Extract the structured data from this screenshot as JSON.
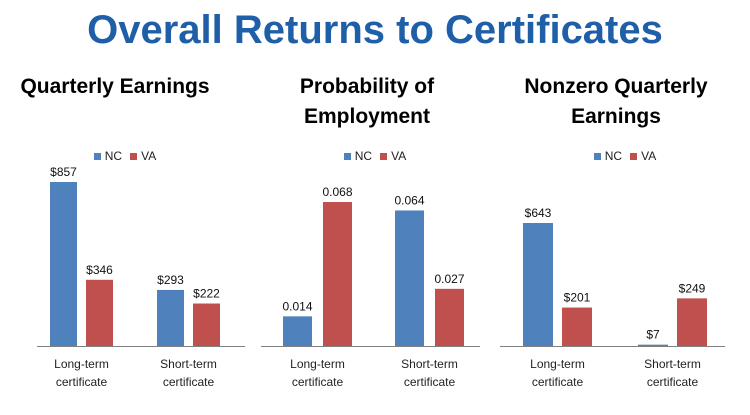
{
  "title": "Overall Returns to Certificates",
  "colors": {
    "NC": "#4f81bd",
    "VA": "#c0504d",
    "title": "#1f5fa8",
    "axis": "#808080"
  },
  "chart_data": [
    {
      "type": "bar",
      "title": "Quarterly Earnings",
      "categories": [
        "Long-term certificate",
        "Short-term certificate"
      ],
      "series": [
        {
          "name": "NC",
          "values": [
            857,
            293
          ],
          "labels": [
            "$857",
            "$293"
          ]
        },
        {
          "name": "VA",
          "values": [
            346,
            222
          ],
          "labels": [
            "$346",
            "$222"
          ]
        }
      ]
    },
    {
      "type": "bar",
      "title": "Probability of Employment",
      "categories": [
        "Long-term certificate",
        "Short-term certificate"
      ],
      "series": [
        {
          "name": "NC",
          "values": [
            0.014,
            0.064
          ],
          "labels": [
            "0.014",
            "0.064"
          ]
        },
        {
          "name": "VA",
          "values": [
            0.068,
            0.027
          ],
          "labels": [
            "0.068",
            "0.027"
          ]
        }
      ]
    },
    {
      "type": "bar",
      "title": "Nonzero Quarterly Earnings",
      "categories": [
        "Long-term certificate",
        "Short-term certificate"
      ],
      "series": [
        {
          "name": "NC",
          "values": [
            643,
            7
          ],
          "labels": [
            "$643",
            "$7"
          ]
        },
        {
          "name": "VA",
          "values": [
            201,
            249
          ],
          "labels": [
            "$201",
            "$249"
          ]
        }
      ]
    }
  ]
}
